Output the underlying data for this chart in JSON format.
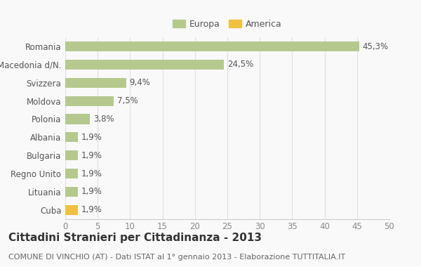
{
  "categories": [
    "Romania",
    "Macedonia d/N.",
    "Svizzera",
    "Moldova",
    "Polonia",
    "Albania",
    "Bulgaria",
    "Regno Unito",
    "Lituania",
    "Cuba"
  ],
  "values": [
    45.3,
    24.5,
    9.4,
    7.5,
    3.8,
    1.9,
    1.9,
    1.9,
    1.9,
    1.9
  ],
  "labels": [
    "45,3%",
    "24,5%",
    "9,4%",
    "7,5%",
    "3,8%",
    "1,9%",
    "1,9%",
    "1,9%",
    "1,9%",
    "1,9%"
  ],
  "colors": [
    "#b5c98e",
    "#b5c98e",
    "#b5c98e",
    "#b5c98e",
    "#b5c98e",
    "#b5c98e",
    "#b5c98e",
    "#b5c98e",
    "#b5c98e",
    "#f0c040"
  ],
  "europa_color": "#b5c98e",
  "america_color": "#f0c040",
  "title": "Cittadini Stranieri per Cittadinanza - 2013",
  "subtitle": "COMUNE DI VINCHIO (AT) - Dati ISTAT al 1° gennaio 2013 - Elaborazione TUTTITALIA.IT",
  "xlim": [
    0,
    50
  ],
  "xticks": [
    0,
    5,
    10,
    15,
    20,
    25,
    30,
    35,
    40,
    45,
    50
  ],
  "background_color": "#f9f9f9",
  "grid_color": "#e0e0e0",
  "bar_height": 0.55,
  "title_fontsize": 11,
  "subtitle_fontsize": 8,
  "label_fontsize": 8.5,
  "tick_fontsize": 8.5,
  "legend_fontsize": 9
}
